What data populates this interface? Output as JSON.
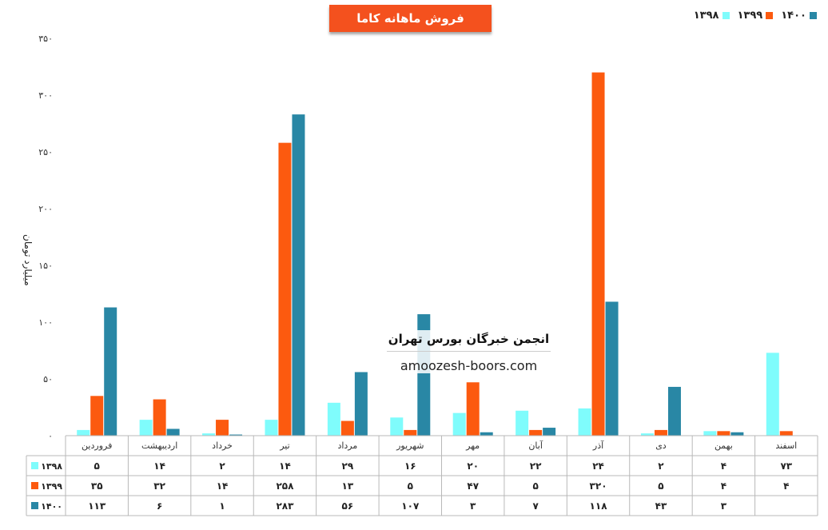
{
  "title": "فروش ماهانه کاما",
  "watermark": {
    "title": "انجمن خبرگان بورس تهران",
    "url": "amoozesh-boors.com"
  },
  "chart_data": {
    "type": "bar",
    "ylabel": "میلیارد تومان",
    "ylim": [
      0,
      350
    ],
    "yticks": [
      {
        "value": 0,
        "label": "۰"
      },
      {
        "value": 50,
        "label": "۵۰"
      },
      {
        "value": 100,
        "label": "۱۰۰"
      },
      {
        "value": 150,
        "label": "۱۵۰"
      },
      {
        "value": 200,
        "label": "۲۰۰"
      },
      {
        "value": 250,
        "label": "۲۵۰"
      },
      {
        "value": 300,
        "label": "۳۰۰"
      },
      {
        "value": 350,
        "label": "۳۵۰"
      }
    ],
    "grid": false,
    "legend": "top-right",
    "categories": [
      "فروردین",
      "اردیبهشت",
      "خرداد",
      "تیر",
      "مرداد",
      "شهریور",
      "مهر",
      "آبان",
      "آذر",
      "دی",
      "بهمن",
      "اسفند"
    ],
    "series": [
      {
        "name": "۱۳۹۸",
        "color": "#7ffcfc",
        "values": [
          5,
          14,
          2,
          14,
          29,
          16,
          20,
          22,
          24,
          2,
          4,
          73
        ],
        "labels": [
          "۵",
          "۱۴",
          "۲",
          "۱۴",
          "۲۹",
          "۱۶",
          "۲۰",
          "۲۲",
          "۲۴",
          "۲",
          "۴",
          "۷۳"
        ]
      },
      {
        "name": "۱۳۹۹",
        "color": "#fc5a0f",
        "values": [
          35,
          32,
          14,
          258,
          13,
          5,
          47,
          5,
          320,
          5,
          4,
          4
        ],
        "labels": [
          "۳۵",
          "۳۲",
          "۱۴",
          "۲۵۸",
          "۱۳",
          "۵",
          "۴۷",
          "۵",
          "۳۲۰",
          "۵",
          "۴",
          "۴"
        ]
      },
      {
        "name": "۱۴۰۰",
        "color": "#2987a5",
        "values": [
          113,
          6,
          1,
          283,
          56,
          107,
          3,
          7,
          118,
          43,
          3,
          null
        ],
        "labels": [
          "۱۱۳",
          "۶",
          "۱",
          "۲۸۳",
          "۵۶",
          "۱۰۷",
          "۳",
          "۷",
          "۱۱۸",
          "۴۳",
          "۳",
          ""
        ]
      }
    ]
  }
}
